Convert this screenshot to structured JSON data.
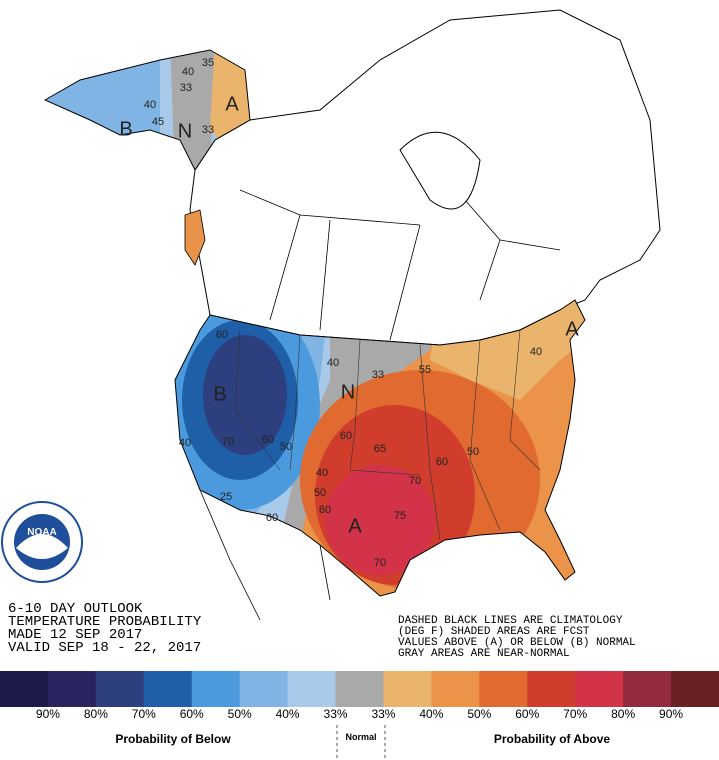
{
  "title_lines": [
    "6-10 DAY OUTLOOK",
    "TEMPERATURE PROBABILITY",
    "MADE  12 SEP 2017",
    "VALID  SEP 18 - 22, 2017"
  ],
  "notes": [
    "DASHED BLACK LINES ARE CLIMATOLOGY",
    "(DEG F) SHADED AREAS ARE FCST",
    "VALUES ABOVE (A) OR BELOW (B) NORMAL",
    "GRAY AREAS ARE NEAR-NORMAL"
  ],
  "logo": "NOAA",
  "map_labels": [
    "35",
    "40",
    "33",
    "A",
    "40",
    "45",
    "B",
    "N",
    "33",
    "60",
    "40",
    "33",
    "N",
    "55",
    "40",
    "A",
    "B",
    "40",
    "70",
    "60",
    "50",
    "65",
    "60",
    "60",
    "50",
    "40",
    "50",
    "60",
    "70",
    "75",
    "A",
    "70",
    "25",
    "60"
  ],
  "legend": {
    "colors": [
      "#1b1a4a",
      "#29235f",
      "#2d3f7f",
      "#1f5fa8",
      "#4b9ade",
      "#80b4e5",
      "#a9c9ea",
      "#a9a9a9",
      "#ebb46c",
      "#ea9349",
      "#e06a30",
      "#d03d2d",
      "#d23349",
      "#922b3b",
      "#6b2023"
    ],
    "labels": [
      "90%",
      "80%",
      "70%",
      "60%",
      "50%",
      "40%",
      "33%",
      "33%",
      "40%",
      "50%",
      "60%",
      "70%",
      "80%",
      "90%"
    ],
    "below": "Probability of Below",
    "normal": "Normal",
    "above": "Probability of Above"
  }
}
